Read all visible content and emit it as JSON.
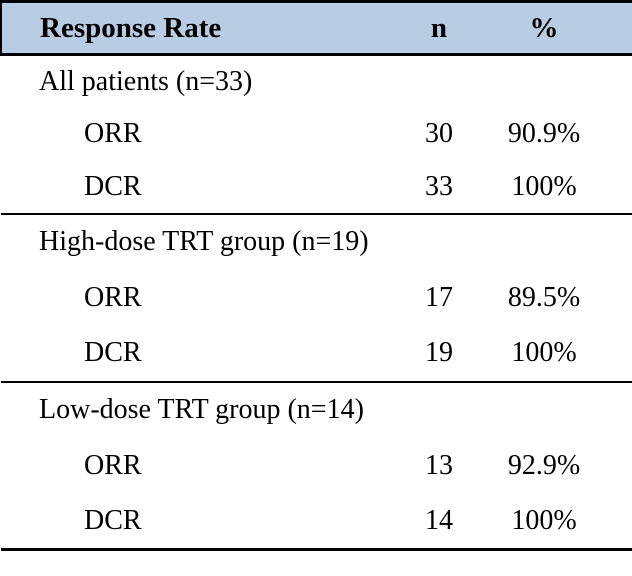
{
  "table": {
    "header": {
      "response_rate": "Response Rate",
      "n": "n",
      "percent": "%"
    },
    "sections": [
      {
        "label": "All patients (n=33)",
        "rows": [
          {
            "metric": "ORR",
            "n": "30",
            "percent": "90.9%"
          },
          {
            "metric": "DCR",
            "n": "33",
            "percent": "100%"
          }
        ]
      },
      {
        "label": "High-dose TRT group (n=19)",
        "rows": [
          {
            "metric": "ORR",
            "n": "17",
            "percent": "89.5%"
          },
          {
            "metric": "DCR",
            "n": "19",
            "percent": "100%"
          }
        ]
      },
      {
        "label": "Low-dose TRT group (n=14)",
        "rows": [
          {
            "metric": "ORR",
            "n": "13",
            "percent": "92.9%"
          },
          {
            "metric": "DCR",
            "n": "14",
            "percent": "100%"
          }
        ]
      }
    ]
  },
  "colors": {
    "header_bg": "#b8cce4",
    "border": "#000000",
    "text": "#000000"
  }
}
